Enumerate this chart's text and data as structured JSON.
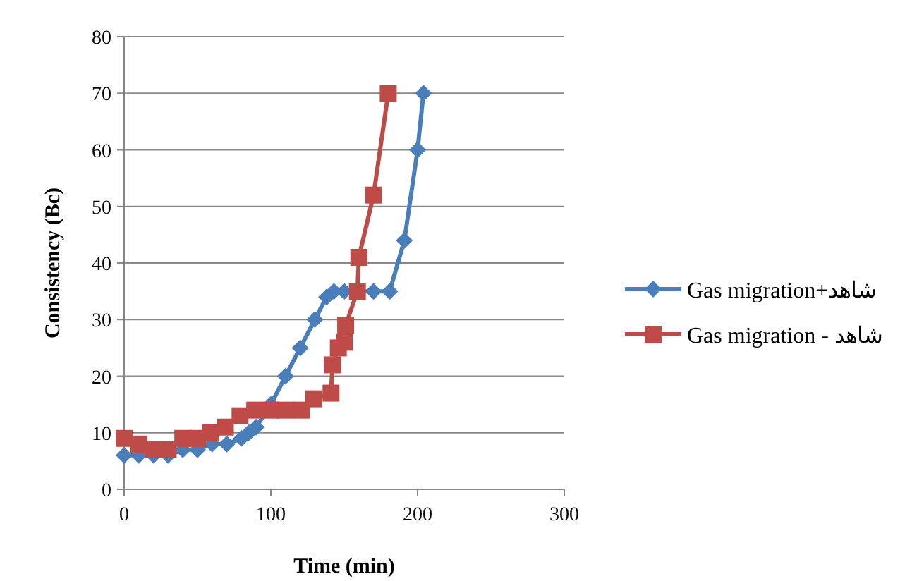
{
  "chart_data": {
    "type": "line",
    "xlabel": "Time (min)",
    "ylabel": "Consistency (Bc)",
    "xlim": [
      0,
      300
    ],
    "ylim": [
      0,
      80
    ],
    "xticks": [
      0,
      100,
      200,
      300
    ],
    "yticks": [
      0,
      10,
      20,
      30,
      40,
      50,
      60,
      70,
      80
    ],
    "grid": "y",
    "legend": "right",
    "series": [
      {
        "name": "Gas migration+شاهد",
        "color": "#4a7ebb",
        "marker": "diamond",
        "x": [
          0,
          10,
          20,
          30,
          40,
          50,
          60,
          70,
          80,
          85,
          90,
          100,
          110,
          120,
          130,
          138,
          143,
          150,
          170,
          181,
          191,
          200,
          204
        ],
        "values": [
          6,
          6,
          6,
          6,
          7,
          7,
          8,
          8,
          9,
          10,
          11,
          15,
          20,
          25,
          30,
          34,
          35,
          35,
          35,
          35,
          44,
          60,
          70
        ]
      },
      {
        "name": "Gas migration - شاهد",
        "color": "#be4b48",
        "marker": "square",
        "x": [
          0,
          10,
          20,
          30,
          40,
          50,
          59,
          69,
          79,
          89,
          100,
          110,
          121,
          129,
          141,
          142,
          146,
          150,
          151,
          159,
          160,
          170,
          180
        ],
        "values": [
          9,
          8,
          7,
          7,
          9,
          9,
          10,
          11,
          13,
          14,
          14,
          14,
          14,
          16,
          17,
          22,
          25,
          26,
          29,
          35,
          41,
          52,
          70
        ]
      }
    ]
  }
}
